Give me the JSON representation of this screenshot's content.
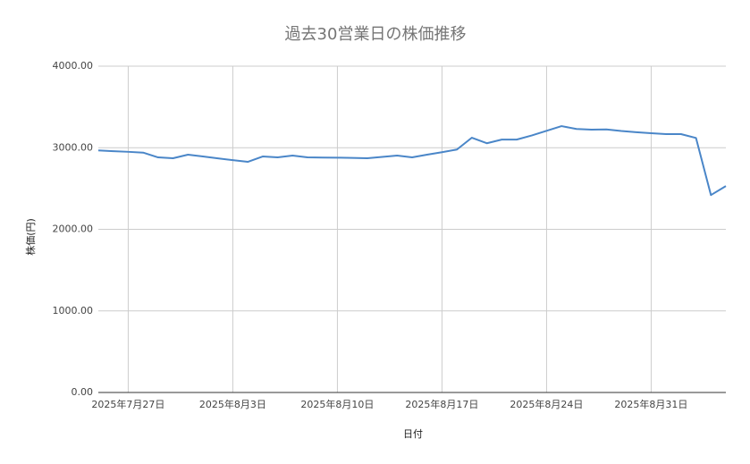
{
  "chart_data": {
    "type": "line",
    "title": "過去30営業日の株価推移",
    "x_label": "日付",
    "y_label": "株価(円)",
    "x": [
      "2025-07-25",
      "2025-07-26",
      "2025-07-27",
      "2025-07-28",
      "2025-07-29",
      "2025-07-30",
      "2025-07-31",
      "2025-08-01",
      "2025-08-02",
      "2025-08-03",
      "2025-08-04",
      "2025-08-05",
      "2025-08-06",
      "2025-08-07",
      "2025-08-08",
      "2025-08-09",
      "2025-08-10",
      "2025-08-11",
      "2025-08-12",
      "2025-08-13",
      "2025-08-14",
      "2025-08-15",
      "2025-08-16",
      "2025-08-17",
      "2025-08-18",
      "2025-08-19",
      "2025-08-20",
      "2025-08-21",
      "2025-08-22",
      "2025-08-23",
      "2025-08-24",
      "2025-08-25",
      "2025-08-26",
      "2025-08-27",
      "2025-08-28",
      "2025-08-29",
      "2025-08-30",
      "2025-08-31",
      "2025-09-01",
      "2025-09-02",
      "2025-09-03",
      "2025-09-04",
      "2025-09-05"
    ],
    "series": [
      {
        "name": "株価",
        "color": "#4a86c8",
        "values": [
          2967,
          2958,
          2950,
          2940,
          2882,
          2871,
          2915,
          2893,
          2870,
          2848,
          2827,
          2893,
          2882,
          2904,
          2882,
          2880,
          2878,
          2876,
          2871,
          2888,
          2904,
          2882,
          2915,
          2945,
          2978,
          3123,
          3055,
          3100,
          3100,
          3150,
          3208,
          3265,
          3230,
          3222,
          3225,
          3205,
          3190,
          3178,
          3167,
          3167,
          3120,
          2420,
          2530
        ]
      }
    ],
    "xlim": [
      "2025-07-25",
      "2025-09-05"
    ],
    "xticks": [
      {
        "value": "2025-07-27",
        "label": "2025年7月27日"
      },
      {
        "value": "2025-08-03",
        "label": "2025年8月3日"
      },
      {
        "value": "2025-08-10",
        "label": "2025年8月10日"
      },
      {
        "value": "2025-08-17",
        "label": "2025年8月17日"
      },
      {
        "value": "2025-08-24",
        "label": "2025年8月24日"
      },
      {
        "value": "2025-08-31",
        "label": "2025年8月31日"
      }
    ],
    "ylim": [
      0,
      4000
    ],
    "yticks": [
      {
        "value": 0,
        "label": "0.00"
      },
      {
        "value": 1000,
        "label": "1000.00"
      },
      {
        "value": 2000,
        "label": "2000.00"
      },
      {
        "value": 3000,
        "label": "3000.00"
      },
      {
        "value": 4000,
        "label": "4000.00"
      }
    ],
    "grid": true
  }
}
